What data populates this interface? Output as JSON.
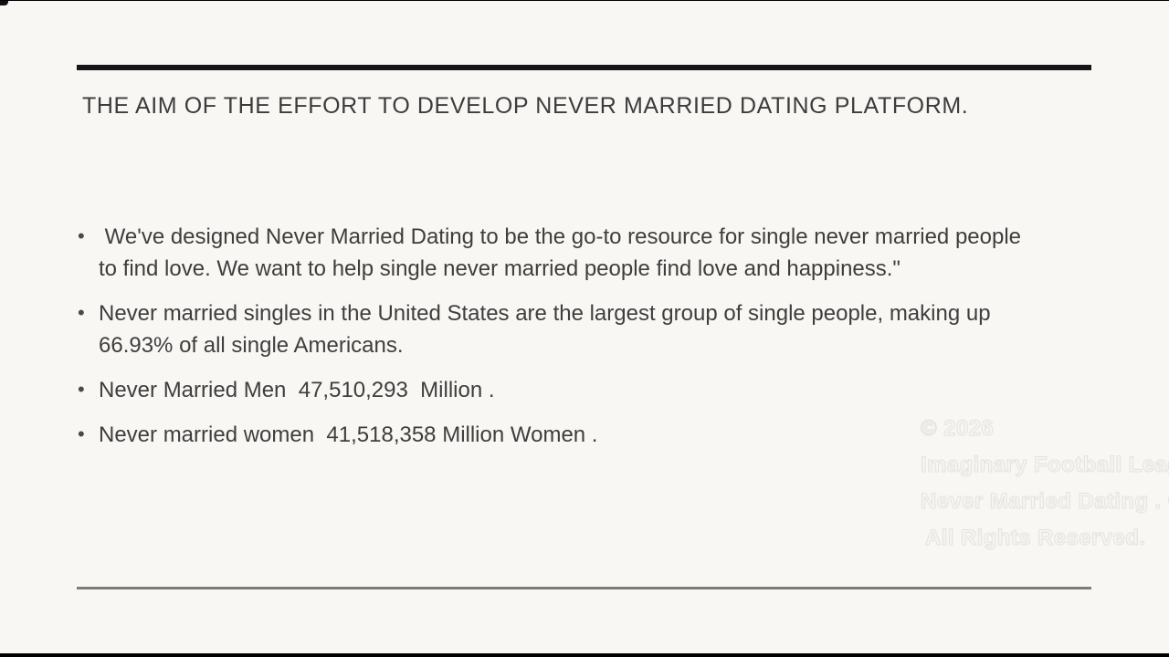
{
  "slide": {
    "title": "THE AIM OF THE EFFORT TO DEVELOP NEVER MARRIED DATING PLATFORM.",
    "bullet_glyph": "•",
    "bullets": [
      " We've designed Never Married Dating to be the go-to resource for single never married people to find love. We want to help single never married people find love and happiness.\"",
      "Never married singles in the United States are the largest group of single people, making up 66.93% of all single Americans.",
      "Never Married Men  47,510,293  Million .",
      "Never married women  41,518,358 Million Women ."
    ],
    "stats": {
      "never_married_share_of_singles_pct": "66.93%",
      "never_married_men": "47,510,293",
      "never_married_women": "41,518,358"
    }
  },
  "watermark": {
    "lines": [
      "© 2026",
      "Imaginary Football League",
      "Never Married Dating . Com",
      "All Rights Reserved."
    ]
  },
  "colors": {
    "slide_background": "#f8f7f4",
    "body_text": "#3e3e3e",
    "title_rule": "#161616",
    "bottom_rule": "#7c7c7c",
    "watermark_text": "#e5e3df",
    "letterbox": "#000000"
  }
}
